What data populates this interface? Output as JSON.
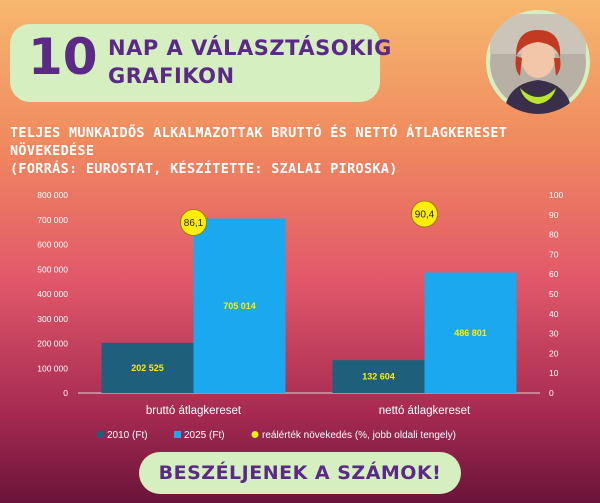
{
  "header": {
    "number": "10",
    "line1": "NAP A VÁLASZTÁSOKIG",
    "line2": "GRAFIKON"
  },
  "subtitle": {
    "line1": "TELJES MUNKAIDŐS ALKALMAZOTTAK BRUTTÓ ÉS NETTÓ ÁTLAGKERESET",
    "line2": "NÖVEKEDÉSE",
    "line3": "(FORRÁS: EUROSTAT, KÉSZÍTETTE: SZALAI PIROSKA)"
  },
  "cta": {
    "label": "BESZÉLJENEK A SZÁMOK!"
  },
  "chart_data": {
    "type": "bar",
    "categories": [
      "bruttó átlagkereset",
      "nettó átlagkereset"
    ],
    "series": [
      {
        "name": "2010 (Ft)",
        "values": [
          202525,
          132604
        ],
        "labels": [
          "202 525",
          "132 604"
        ],
        "color": "#1e5f7c"
      },
      {
        "name": "2025 (Ft)",
        "values": [
          705014,
          486801
        ],
        "labels": [
          "705 014",
          "486 801"
        ],
        "color": "#1aa8ee"
      }
    ],
    "secondary_series": {
      "name": "reálérték növekedés (%, jobb oldali tengely)",
      "type": "marker",
      "values": [
        86.1,
        90.4
      ],
      "labels": [
        "86,1",
        "90,4"
      ],
      "color": "#ffee00"
    },
    "ylim": [
      0,
      800000
    ],
    "y2lim": [
      0,
      100
    ],
    "yticks": [
      "0",
      "100 000",
      "200 000",
      "300 000",
      "400 000",
      "500 000",
      "600 000",
      "700 000",
      "800 000"
    ],
    "y2ticks": [
      "0",
      "10",
      "20",
      "30",
      "40",
      "50",
      "60",
      "70",
      "80",
      "90",
      "100"
    ],
    "legend_position": "bottom",
    "grid": false
  },
  "colors": {
    "accent_purple": "#5a2a86",
    "panel_green": "#d6efc1",
    "data_label_yellow": "#ffee00"
  }
}
